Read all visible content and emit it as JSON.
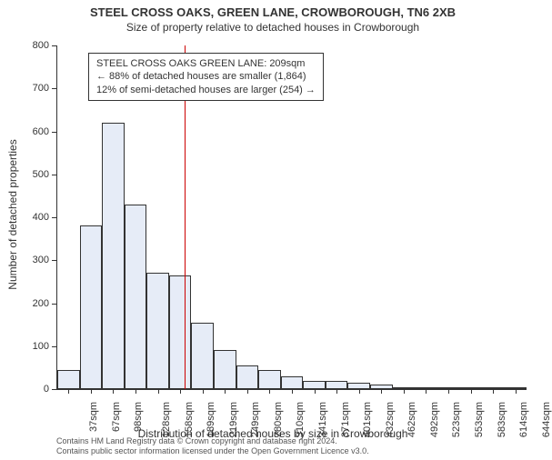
{
  "title": "STEEL CROSS OAKS, GREEN LANE, CROWBOROUGH, TN6 2XB",
  "subtitle": "Size of property relative to detached houses in Crowborough",
  "y_axis_label": "Number of detached properties",
  "x_axis_label": "Distribution of detached houses by size in Crowborough",
  "chart": {
    "type": "histogram",
    "ylim_max": 800,
    "y_ticks": [
      0,
      100,
      200,
      300,
      400,
      500,
      600,
      700,
      800
    ],
    "x_tick_labels": [
      "37sqm",
      "67sqm",
      "98sqm",
      "128sqm",
      "158sqm",
      "189sqm",
      "219sqm",
      "249sqm",
      "280sqm",
      "310sqm",
      "341sqm",
      "371sqm",
      "401sqm",
      "432sqm",
      "462sqm",
      "492sqm",
      "523sqm",
      "553sqm",
      "583sqm",
      "614sqm",
      "644sqm"
    ],
    "bar_values": [
      45,
      380,
      620,
      430,
      270,
      265,
      155,
      90,
      55,
      45,
      30,
      20,
      20,
      15,
      10,
      4,
      2,
      2,
      2,
      2,
      2
    ],
    "bar_fill_color": "#e6ecf7",
    "bar_border_color": "#333333",
    "reference_line_index": 5.7,
    "reference_line_color": "#cc0000",
    "background_color": "#ffffff",
    "axis_color": "#333333",
    "label_fontsize": 12,
    "tick_fontsize": 11
  },
  "annotation": {
    "line1": "STEEL CROSS OAKS GREEN LANE: 209sqm",
    "line2": "← 88% of detached houses are smaller (1,864)",
    "line3": "12% of semi-detached houses are larger (254) →"
  },
  "footer": {
    "line1": "Contains HM Land Registry data © Crown copyright and database right 2024.",
    "line2": "Contains public sector information licensed under the Open Government Licence v3.0."
  }
}
